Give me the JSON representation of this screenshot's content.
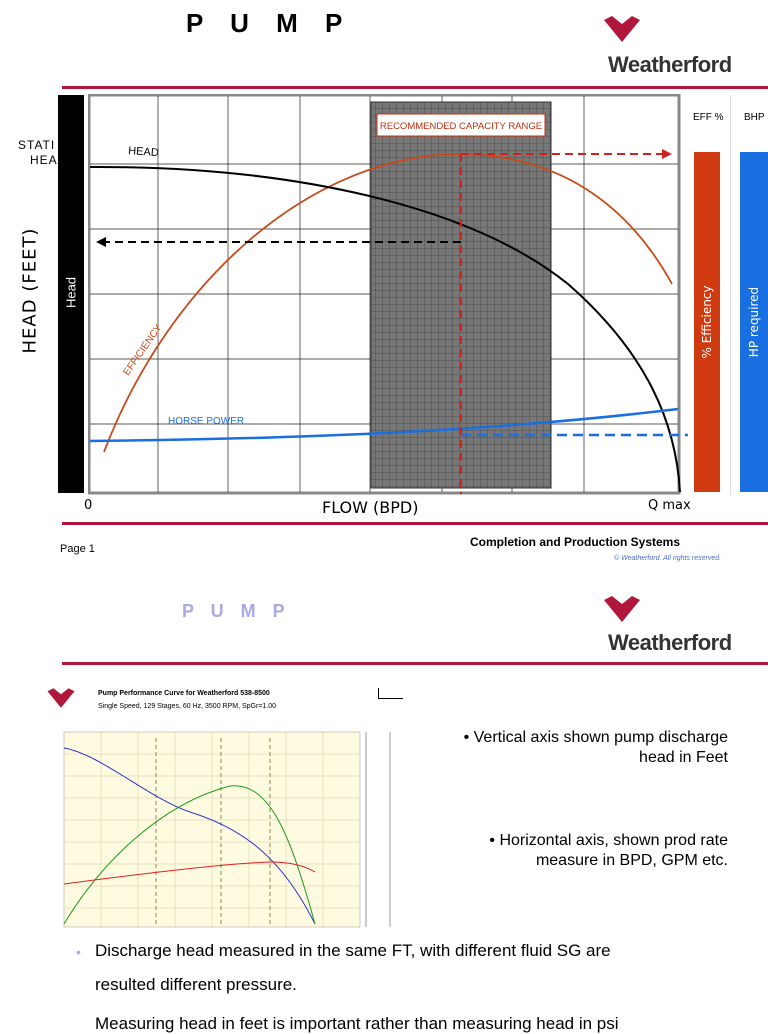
{
  "slide1": {
    "title": "P U M P",
    "brand": "Weatherford",
    "brand_mark": "®",
    "static_head_label": [
      "STATI",
      "HEA"
    ],
    "y_axis_label": "HEAD (FEET)",
    "head_bar_label": "Head",
    "head_curve_label": "HEAD",
    "efficiency_curve_label": "EFFICIENCY",
    "horsepower_curve_label": "HORSE POWER",
    "capacity_box_label": "RECOMMENDED CAPACITY RANGE",
    "eff_header": "EFF %",
    "bhp_header": "BHP",
    "eff_bar_label": "% Efficiency",
    "hp_bar_label": "HP required",
    "x_origin": "0",
    "x_axis_label": "FLOW (BPD)",
    "x_max_label": "Q max",
    "footer_right": "Completion and Production Systems",
    "footer_copyright": "© Weatherford. All rights reserved.",
    "page_label": "Page 1"
  },
  "slide2": {
    "title": "P U M P",
    "brand": "Weatherford",
    "brand_mark": "®",
    "chart_title": "Pump Performance Curve for Weatherford 538-8500",
    "chart_subtitle": "Single Speed, 129 Stages, 60 Hz, 3500 RPM, SpGr=1.00",
    "bullets": [
      {
        "lead": "Vertical axis shown pump discharge",
        "rest": "head in Feet"
      },
      {
        "lead": "Horizontal axis, shown prod rate",
        "rest": "measure in BPD, GPM etc."
      }
    ],
    "bottom_lines": [
      "Discharge head measured in the same FT, with different fluid SG are",
      "resulted different pressure.",
      "Measuring head in feet is important rather than measuring head in psi"
    ]
  },
  "colors": {
    "accent_red": "#b0173a",
    "efficiency_red": "#d03a10",
    "hp_blue": "#1a6fe0",
    "grid_dark": "#555555"
  }
}
